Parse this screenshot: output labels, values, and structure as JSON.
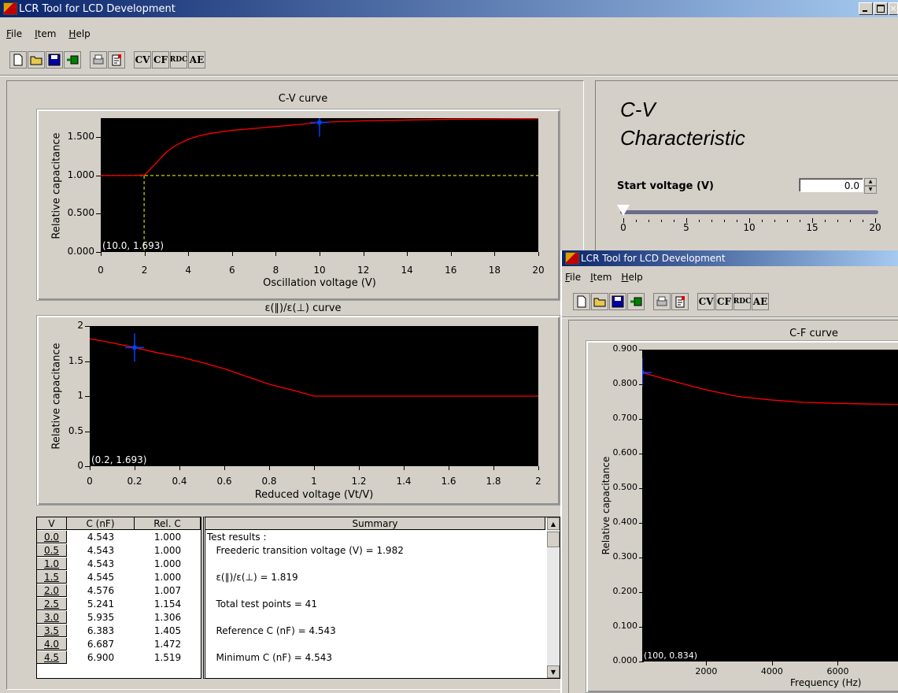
{
  "main_window": {
    "title": "LCR Tool for LCD Development",
    "menus": [
      "File",
      "Item",
      "Help"
    ],
    "menu_mnemonics": [
      "F",
      "I",
      "H"
    ],
    "toolbar": [
      "new-icon",
      "open-icon",
      "save-icon",
      "export-icon",
      "print-icon",
      "properties-icon",
      "cv-icon",
      "cf-icon",
      "rdc-icon",
      "ae-icon"
    ],
    "toolbar_glyphs": [
      "",
      "",
      "",
      "",
      "",
      "",
      "CV",
      "CF",
      "RDC",
      "AE"
    ],
    "title_colors": [
      "#0a246a",
      "#a6caf0"
    ]
  },
  "side_panel": {
    "heading_line1": "C-V",
    "heading_line2": "Characteristic",
    "start_voltage_label": "Start voltage (V)",
    "start_voltage_value": "0.0",
    "slider_ticks": [
      "0",
      "5",
      "10",
      "15",
      "20"
    ],
    "slider_value": 0
  },
  "cv_chart": {
    "title": "C-V curve",
    "ylabel": "Relative capacitance",
    "xlabel": "Oscillation voltage (V)",
    "cursor_readout": "(10.0, 1.693)",
    "yticks": [
      "0.000",
      "0.500",
      "1.000",
      "1.500"
    ],
    "xticks": [
      "0",
      "2",
      "4",
      "6",
      "8",
      "10",
      "12",
      "14",
      "16",
      "18",
      "20"
    ]
  },
  "eps_chart": {
    "title": "ε(∥)/ε(⊥) curve",
    "ylabel": "Relative capacitance",
    "xlabel": "Reduced voltage (Vt/V)",
    "cursor_readout": "(0.2, 1.693)",
    "yticks": [
      "0",
      "0.5",
      "1",
      "1.5",
      "2"
    ],
    "xticks": [
      "0",
      "0.2",
      "0.4",
      "0.6",
      "0.8",
      "1",
      "1.2",
      "1.4",
      "1.6",
      "1.8",
      "2"
    ]
  },
  "data_table": {
    "columns": [
      "V",
      "C (nF)",
      "Rel. C"
    ],
    "rows": [
      [
        "0.0",
        "4.543",
        "1.000"
      ],
      [
        "0.5",
        "4.543",
        "1.000"
      ],
      [
        "1.0",
        "4.543",
        "1.000"
      ],
      [
        "1.5",
        "4.545",
        "1.000"
      ],
      [
        "2.0",
        "4.576",
        "1.007"
      ],
      [
        "2.5",
        "5.241",
        "1.154"
      ],
      [
        "3.0",
        "5.935",
        "1.306"
      ],
      [
        "3.5",
        "6.383",
        "1.405"
      ],
      [
        "4.0",
        "6.687",
        "1.472"
      ],
      [
        "4.5",
        "6.900",
        "1.519"
      ]
    ]
  },
  "summary": {
    "header": "Summary",
    "lines": [
      "Test results :",
      "   Freederic transition voltage (V) = 1.982",
      "",
      "   ε(∥)/ε(⊥) = 1.819",
      "",
      "   Total test points = 41",
      "",
      "   Reference C (nF) = 4.543",
      "",
      "   Minimum C (nF) = 4.543"
    ]
  },
  "second_window": {
    "title": "LCR Tool for LCD Development",
    "menus": [
      "File",
      "Item",
      "Help"
    ],
    "cf_chart": {
      "title": "C-F curve",
      "ylabel": "Relative capacitance",
      "xlabel": "Frequency (Hz)",
      "cursor_readout": "(100, 0.834)",
      "yticks": [
        "0.000",
        "0.100",
        "0.200",
        "0.300",
        "0.400",
        "0.500",
        "0.600",
        "0.700",
        "0.800",
        "0.900"
      ],
      "xticks": [
        "2000",
        "4000",
        "6000"
      ]
    }
  },
  "chart_data": [
    {
      "type": "line",
      "title": "C-V curve",
      "xlabel": "Oscillation voltage (V)",
      "ylabel": "Relative capacitance",
      "xlim": [
        0,
        20
      ],
      "ylim": [
        0,
        1.75
      ],
      "series": [
        {
          "x": [
            0,
            1,
            1.5,
            2,
            2.5,
            3,
            3.5,
            4,
            4.5,
            5,
            6,
            7,
            8,
            9,
            10,
            11,
            12,
            14,
            16,
            18,
            20
          ],
          "y": [
            1.0,
            1.0,
            1.0,
            1.007,
            1.154,
            1.306,
            1.405,
            1.472,
            1.519,
            1.55,
            1.59,
            1.615,
            1.64,
            1.665,
            1.693,
            1.705,
            1.715,
            1.725,
            1.735,
            1.74,
            1.745
          ],
          "color": "#ff0000"
        }
      ],
      "reference_lines": {
        "y": 1.0,
        "x": 1.982,
        "color": "#ffff00"
      },
      "cursor": {
        "x": 10.0,
        "y": 1.693
      }
    },
    {
      "type": "line",
      "title": "ε(∥)/ε(⊥) curve",
      "xlabel": "Reduced voltage (Vt/V)",
      "ylabel": "Relative capacitance",
      "xlim": [
        0,
        2
      ],
      "ylim": [
        0,
        2
      ],
      "series": [
        {
          "x": [
            0,
            0.1,
            0.2,
            0.3,
            0.4,
            0.5,
            0.6,
            0.7,
            0.8,
            0.9,
            1.0,
            1.2,
            1.5,
            2.0
          ],
          "y": [
            1.819,
            1.76,
            1.693,
            1.62,
            1.56,
            1.48,
            1.39,
            1.28,
            1.17,
            1.09,
            1.0,
            1.0,
            1.0,
            1.0
          ],
          "color": "#ff0000"
        }
      ],
      "cursor": {
        "x": 0.2,
        "y": 1.693
      }
    },
    {
      "type": "line",
      "title": "C-F curve",
      "xlabel": "Frequency (Hz)",
      "ylabel": "Relative capacitance",
      "xlim": [
        100,
        8000
      ],
      "ylim": [
        0,
        0.9
      ],
      "series": [
        {
          "x": [
            100,
            1000,
            2000,
            3000,
            4000,
            5000,
            6000,
            7000,
            8000
          ],
          "y": [
            0.834,
            0.81,
            0.785,
            0.765,
            0.755,
            0.748,
            0.745,
            0.743,
            0.742
          ],
          "color": "#ff0000"
        }
      ],
      "cursor": {
        "x": 100,
        "y": 0.834
      }
    }
  ]
}
